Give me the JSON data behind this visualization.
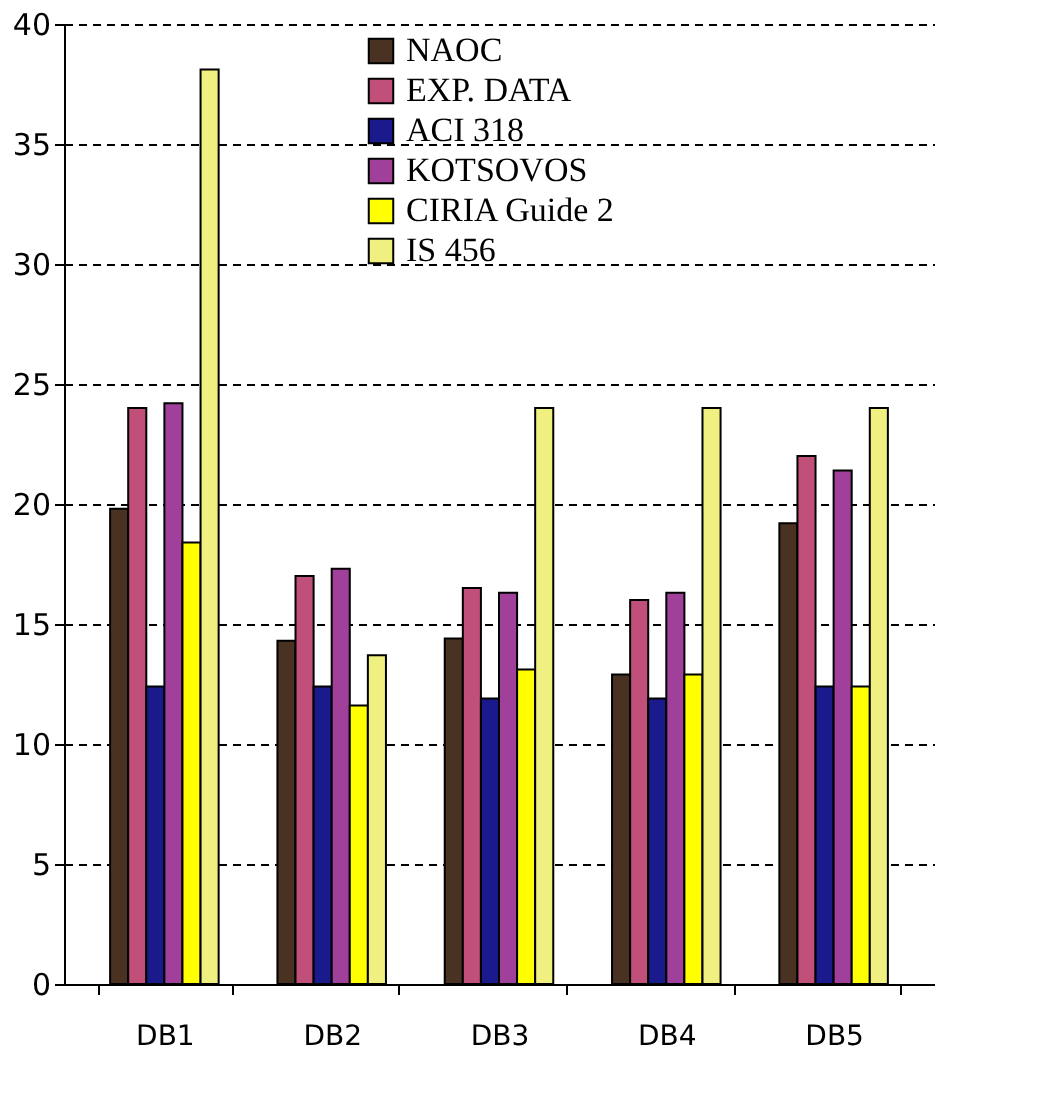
{
  "chart_data": {
    "type": "bar",
    "categories": [
      "DB1",
      "DB2",
      "DB3",
      "DB4",
      "DB5"
    ],
    "series": [
      {
        "name": "NAOC",
        "color": "#4a3222",
        "values": [
          19.8,
          14.3,
          14.4,
          12.9,
          19.2
        ]
      },
      {
        "name": "EXP. DATA",
        "color": "#c0507a",
        "values": [
          24,
          17,
          16.5,
          16,
          22
        ]
      },
      {
        "name": "ACI 318",
        "color": "#1a1a8c",
        "values": [
          12.4,
          12.4,
          11.9,
          11.9,
          12.4
        ]
      },
      {
        "name": "KOTSOVOS",
        "color": "#a0409a",
        "values": [
          24.2,
          17.3,
          16.3,
          16.3,
          21.4
        ]
      },
      {
        "name": "CIRIA Guide 2",
        "color": "#ffff00",
        "values": [
          18.4,
          11.6,
          13.1,
          12.9,
          12.4
        ]
      },
      {
        "name": "IS 456",
        "color": "#f0f080",
        "values": [
          38.1,
          13.7,
          24,
          24,
          24
        ]
      }
    ],
    "ylim": [
      0,
      40
    ],
    "yticks": [
      0,
      5,
      10,
      15,
      20,
      25,
      30,
      35,
      40
    ],
    "grid": "y",
    "legend": "top right"
  }
}
